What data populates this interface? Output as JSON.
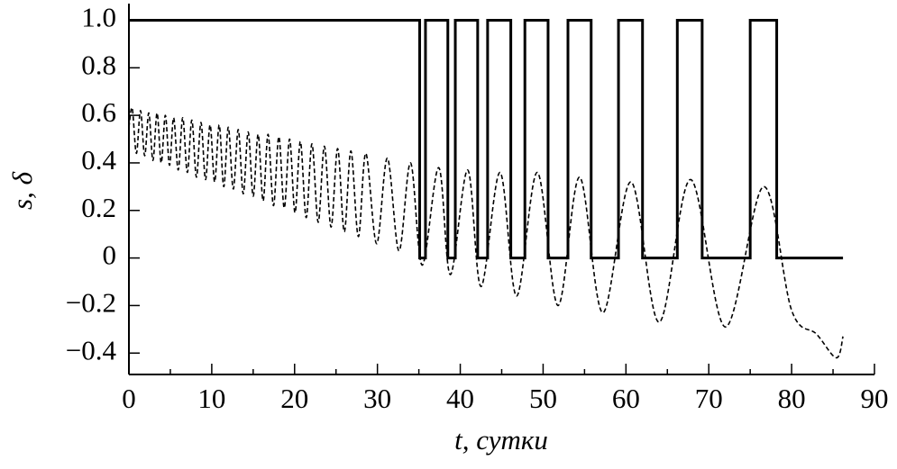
{
  "chart_data": {
    "type": "line",
    "xlabel": "t, сутки",
    "ylabel": "s, δ",
    "xlim": [
      0,
      90
    ],
    "ylim": [
      -0.49,
      1.07
    ],
    "xticks": [
      0,
      10,
      20,
      30,
      40,
      50,
      60,
      70,
      80,
      90
    ],
    "xminorticks": [
      5,
      15,
      25,
      35,
      45,
      55,
      65,
      75,
      85
    ],
    "yticks": [
      {
        "value": -0.4,
        "label": "−0.4"
      },
      {
        "value": -0.2,
        "label": "−0.2"
      },
      0,
      0.2,
      0.4,
      0.6,
      0.8,
      {
        "value": 1,
        "label": "1.0"
      }
    ],
    "series": [
      {
        "color": "#000000",
        "style": "solid",
        "x": [
          0,
          35.1,
          35.1,
          35.8,
          35.8,
          38.5,
          38.5,
          39.4,
          39.4,
          42.1,
          42.1,
          43.3,
          43.3,
          46.1,
          46.1,
          47.8,
          47.8,
          50.6,
          50.6,
          53.0,
          53.0,
          55.8,
          55.8,
          59.1,
          59.1,
          62.0,
          62.0,
          66.2,
          66.2,
          69.2,
          69.2,
          75.0,
          75.0,
          78.2,
          78.2,
          86.2
        ],
        "values": [
          1,
          1,
          0,
          0,
          1,
          1,
          0,
          0,
          1,
          1,
          0,
          0,
          1,
          1,
          0,
          0,
          1,
          1,
          0,
          0,
          1,
          1,
          0,
          0,
          1,
          1,
          0,
          0,
          1,
          1,
          0,
          0,
          1,
          1,
          0,
          0
        ]
      },
      {
        "color": "#000000",
        "style": "dashed",
        "x": [
          0,
          0.4,
          0.9,
          1.4,
          1.9,
          2.4,
          2.9,
          3.4,
          3.9,
          4.4,
          4.9,
          5.4,
          5.95,
          6.5,
          7.05,
          7.6,
          8.15,
          8.7,
          9.25,
          9.8,
          10.35,
          10.9,
          11.45,
          12.0,
          12.6,
          13.2,
          13.8,
          14.4,
          15.0,
          15.6,
          16.2,
          16.8,
          17.45,
          18.1,
          18.75,
          19.4,
          20.05,
          20.7,
          21.4,
          22.1,
          22.85,
          23.6,
          24.4,
          25.2,
          26.0,
          26.8,
          27.7,
          28.6,
          29.9,
          31.2,
          32.6,
          34.0,
          35.4,
          37.4,
          38.8,
          40.9,
          42.5,
          44.8,
          46.8,
          49.3,
          51.8,
          54.4,
          57.2,
          60.6,
          64.0,
          67.8,
          72.0,
          76.6,
          80.0,
          83.0,
          85.4,
          86.2
        ],
        "values": [
          0.55,
          0.63,
          0.44,
          0.62,
          0.43,
          0.61,
          0.41,
          0.61,
          0.4,
          0.6,
          0.39,
          0.59,
          0.37,
          0.59,
          0.36,
          0.58,
          0.34,
          0.57,
          0.33,
          0.56,
          0.32,
          0.56,
          0.3,
          0.55,
          0.29,
          0.54,
          0.27,
          0.53,
          0.26,
          0.52,
          0.24,
          0.52,
          0.22,
          0.51,
          0.21,
          0.5,
          0.19,
          0.49,
          0.17,
          0.48,
          0.15,
          0.47,
          0.13,
          0.46,
          0.11,
          0.45,
          0.09,
          0.44,
          0.06,
          0.42,
          0.03,
          0.4,
          -0.03,
          0.38,
          -0.07,
          0.37,
          -0.12,
          0.36,
          -0.16,
          0.36,
          -0.2,
          0.34,
          -0.23,
          0.32,
          -0.27,
          0.33,
          -0.29,
          0.3,
          -0.22,
          -0.32,
          -0.42,
          -0.33
        ]
      }
    ]
  }
}
